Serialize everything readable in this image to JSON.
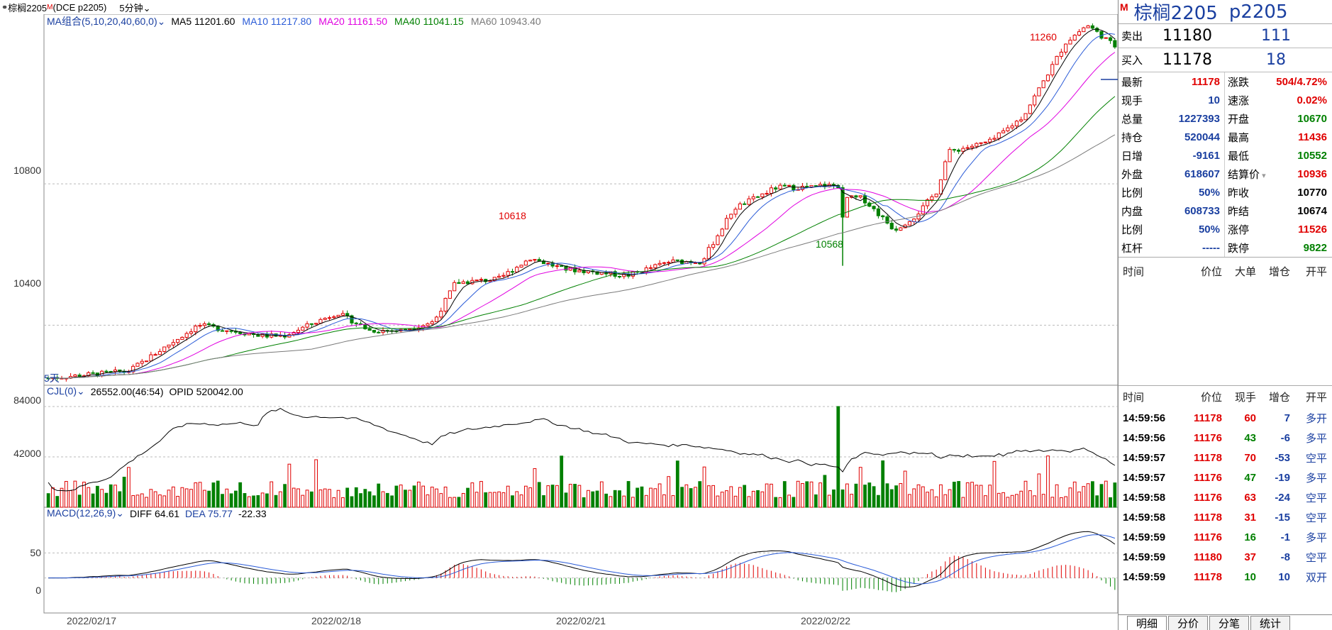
{
  "titlebar": {
    "icon": "link-icon",
    "symbol": "棕榈2205",
    "main_mark": "M",
    "code": "(DCE p2205)",
    "period": "5分钟"
  },
  "main_legend": {
    "combo": "MA组合(5,10,20,40,60,0)",
    "items": [
      {
        "label": "MA5 11201.60",
        "color": "#000000"
      },
      {
        "label": "MA10 11217.80",
        "color": "#2a5bd7"
      },
      {
        "label": "MA20 11161.50",
        "color": "#e000e0"
      },
      {
        "label": "MA40 11041.15",
        "color": "#008000"
      },
      {
        "label": "MA60 10943.40",
        "color": "#7a7a7a"
      }
    ]
  },
  "vol_legend": {
    "name": "CJL(0)",
    "value": "26552.00(46:54)",
    "opid": "OPID 520042.00"
  },
  "macd_legend": {
    "name": "MACD(12,26,9)",
    "diff": "DIFF 64.61",
    "dea": "DEA 75.77",
    "macd": "-22.33"
  },
  "annotations": {
    "high1": "11260",
    "high2": "10618",
    "low1": "10568",
    "days": "5天"
  },
  "y_axis": {
    "price": [
      "10800",
      "10400"
    ],
    "volume": [
      "84000",
      "42000"
    ],
    "macd": [
      "50",
      "0"
    ]
  },
  "x_axis": [
    "2022/02/17",
    "2022/02/18",
    "2022/02/21",
    "2022/02/22"
  ],
  "chart_data": {
    "type": "candlestick",
    "price_range": [
      10230,
      11280
    ],
    "volume_range": [
      0,
      84000
    ],
    "macd_range": [
      -70,
      110
    ],
    "key_points": [
      {
        "label": "10618",
        "value": 10618
      },
      {
        "label": "10568",
        "value": 10568
      },
      {
        "label": "11260",
        "value": 11260
      }
    ]
  },
  "panel": {
    "main_mark": "M",
    "name": "棕榈2205",
    "code": "p2205",
    "ask": {
      "label": "卖出",
      "price": "11180",
      "volume": "111"
    },
    "bid": {
      "label": "买入",
      "price": "11178",
      "volume": "18"
    },
    "stats_left": [
      {
        "label": "最新",
        "value": "11178",
        "color": "red"
      },
      {
        "label": "现手",
        "value": "10",
        "color": "blue"
      },
      {
        "label": "总量",
        "value": "1227393",
        "color": "blue"
      },
      {
        "label": "持仓",
        "value": "520044",
        "color": "blue"
      },
      {
        "label": "日增",
        "value": "-9161",
        "color": "blue"
      },
      {
        "label": "外盘",
        "value": "618607",
        "color": "blue"
      },
      {
        "label": "比例",
        "value": "50%",
        "color": "blue"
      },
      {
        "label": "内盘",
        "value": "608733",
        "color": "blue"
      },
      {
        "label": "比例",
        "value": "50%",
        "color": "blue"
      },
      {
        "label": "杠杆",
        "value": "-----",
        "color": "blue"
      }
    ],
    "stats_right": [
      {
        "label": "涨跌",
        "value": "504/4.72%",
        "color": "red"
      },
      {
        "label": "速涨",
        "value": "0.02%",
        "color": "red"
      },
      {
        "label": "开盘",
        "value": "10670",
        "color": "green"
      },
      {
        "label": "最高",
        "value": "11436",
        "color": "red"
      },
      {
        "label": "最低",
        "value": "10552",
        "color": "green"
      },
      {
        "label": "结算价",
        "value": "10936",
        "color": "red"
      },
      {
        "label": "昨收",
        "value": "10770",
        "color": "black"
      },
      {
        "label": "昨结",
        "value": "10674",
        "color": "black"
      },
      {
        "label": "涨停",
        "value": "11526",
        "color": "red"
      },
      {
        "label": "跌停",
        "value": "9822",
        "color": "green"
      }
    ],
    "big_header": [
      "时间",
      "价位",
      "大单",
      "增仓",
      "开平"
    ],
    "tick_header": [
      "时间",
      "价位",
      "现手",
      "增仓",
      "开平"
    ],
    "ticks": [
      {
        "time": "14:59:56",
        "price": "11178",
        "pc": "red",
        "vol": "60",
        "chg": "7",
        "type": "多开",
        "vc": "red",
        "cc": "blue"
      },
      {
        "time": "14:59:56",
        "price": "11176",
        "pc": "red",
        "vol": "43",
        "chg": "-6",
        "type": "多平",
        "vc": "green",
        "cc": "blue"
      },
      {
        "time": "14:59:57",
        "price": "11178",
        "pc": "red",
        "vol": "70",
        "chg": "-53",
        "type": "空平",
        "vc": "red",
        "cc": "blue"
      },
      {
        "time": "14:59:57",
        "price": "11176",
        "pc": "red",
        "vol": "47",
        "chg": "-19",
        "type": "多平",
        "vc": "green",
        "cc": "blue"
      },
      {
        "time": "14:59:58",
        "price": "11176",
        "pc": "red",
        "vol": "63",
        "chg": "-24",
        "type": "空平",
        "vc": "red",
        "cc": "blue"
      },
      {
        "time": "14:59:58",
        "price": "11178",
        "pc": "red",
        "vol": "31",
        "chg": "-15",
        "type": "空平",
        "vc": "red",
        "cc": "blue"
      },
      {
        "time": "14:59:59",
        "price": "11176",
        "pc": "red",
        "vol": "16",
        "chg": "-1",
        "type": "多平",
        "vc": "green",
        "cc": "blue"
      },
      {
        "time": "14:59:59",
        "price": "11180",
        "pc": "red",
        "vol": "37",
        "chg": "-8",
        "type": "空平",
        "vc": "red",
        "cc": "blue"
      },
      {
        "time": "14:59:59",
        "price": "11178",
        "pc": "red",
        "vol": "10",
        "chg": "10",
        "type": "双开",
        "vc": "green",
        "cc": "blue"
      }
    ],
    "tabs": [
      "明细",
      "分价",
      "分笔",
      "统计"
    ]
  }
}
